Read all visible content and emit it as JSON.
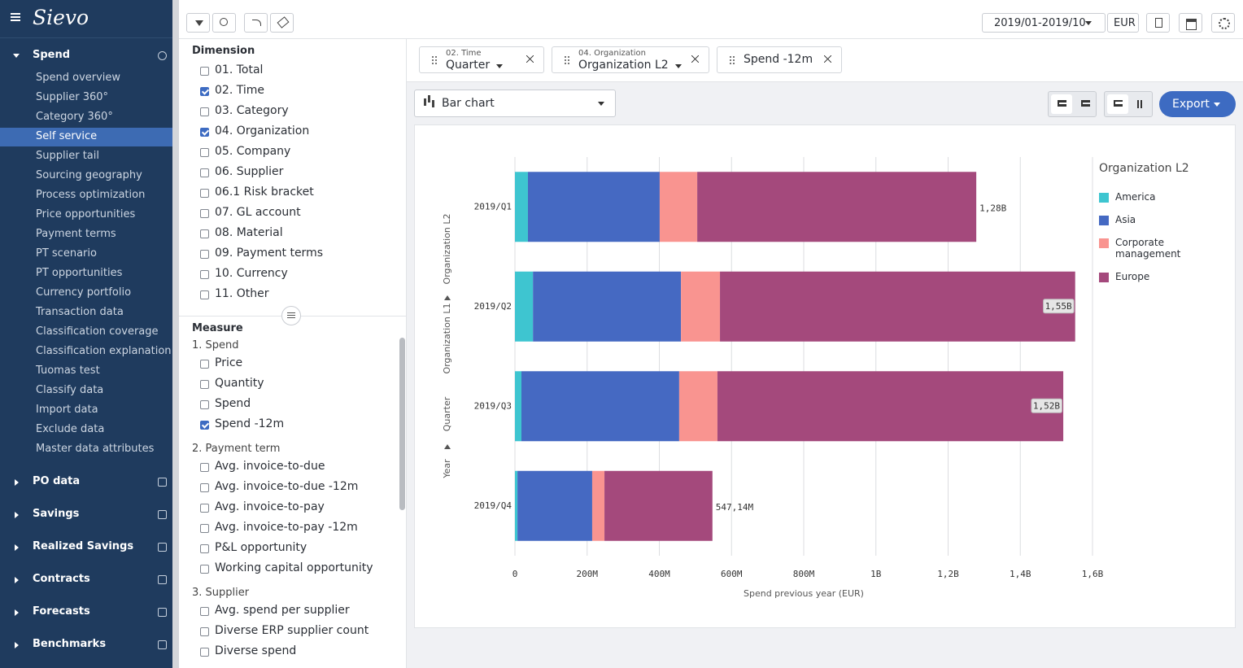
{
  "sidebar": {
    "logo": "Sievo",
    "sections": [
      {
        "title": "Spend",
        "open": true,
        "selected": 3,
        "items": [
          "Spend overview",
          "Supplier 360°",
          "Category 360°",
          "Self service",
          "Supplier tail",
          "Sourcing geography",
          "Process optimization",
          "Price opportunities",
          "Payment terms",
          "PT scenario",
          "PT opportunities",
          "Currency portfolio",
          "Transaction data",
          "Classification coverage",
          "Classification explanation",
          "Tuomas test",
          "Classify data",
          "Import data",
          "Exclude data",
          "Master data attributes"
        ]
      },
      {
        "title": "PO data"
      },
      {
        "title": "Savings"
      },
      {
        "title": "Realized Savings"
      },
      {
        "title": "Contracts"
      },
      {
        "title": "Forecasts"
      },
      {
        "title": "Benchmarks"
      }
    ]
  },
  "toolbar": {
    "period": "2019/01-2019/10",
    "currency": "EUR"
  },
  "dimension": {
    "title": "Dimension",
    "items": [
      {
        "label": "01. Total",
        "checked": false
      },
      {
        "label": "02. Time",
        "checked": true
      },
      {
        "label": "03. Category",
        "checked": false
      },
      {
        "label": "04. Organization",
        "checked": true
      },
      {
        "label": "05. Company",
        "checked": false
      },
      {
        "label": "06. Supplier",
        "checked": false
      },
      {
        "label": "06.1 Risk bracket",
        "checked": false
      },
      {
        "label": "07. GL account",
        "checked": false
      },
      {
        "label": "08. Material",
        "checked": false
      },
      {
        "label": "09. Payment terms",
        "checked": false
      },
      {
        "label": "10. Currency",
        "checked": false
      },
      {
        "label": "11. Other",
        "checked": false
      }
    ]
  },
  "measure": {
    "title": "Measure",
    "groups": [
      {
        "title": "1. Spend",
        "items": [
          {
            "label": "Price",
            "checked": false
          },
          {
            "label": "Quantity",
            "checked": false
          },
          {
            "label": "Spend",
            "checked": false
          },
          {
            "label": "Spend -12m",
            "checked": true
          }
        ]
      },
      {
        "title": "2. Payment term",
        "items": [
          {
            "label": "Avg. invoice-to-due",
            "checked": false
          },
          {
            "label": "Avg. invoice-to-due -12m",
            "checked": false
          },
          {
            "label": "Avg. invoice-to-pay",
            "checked": false
          },
          {
            "label": "Avg. invoice-to-pay -12m",
            "checked": false
          },
          {
            "label": "P&L opportunity",
            "checked": false
          },
          {
            "label": "Working capital opportunity",
            "checked": false
          }
        ]
      },
      {
        "title": "3. Supplier",
        "items": [
          {
            "label": "Avg. spend per supplier",
            "checked": false
          },
          {
            "label": "Diverse ERP supplier count",
            "checked": false
          },
          {
            "label": "Diverse spend",
            "checked": false
          }
        ]
      }
    ]
  },
  "chips": [
    {
      "caption": "02. Time",
      "value": "Quarter"
    },
    {
      "caption": "04. Organization",
      "value": "Organization L2"
    },
    {
      "value": "Spend -12m"
    }
  ],
  "chart_type_select": "Bar chart",
  "export_button": "Export",
  "chart_data": {
    "type": "stacked-barh",
    "categories": [
      "2019/Q1",
      "2019/Q2",
      "2019/Q3",
      "2019/Q4"
    ],
    "series": [
      {
        "name": "America",
        "color": "#3ec5d0",
        "values": [
          36000000,
          50000000,
          18000000,
          7000000
        ]
      },
      {
        "name": "Asia",
        "color": "#4569c2",
        "values": [
          365000000,
          410000000,
          437000000,
          207000000
        ]
      },
      {
        "name": "Corporate management",
        "color": "#f99490",
        "values": [
          104000000,
          108000000,
          106000000,
          34000000
        ]
      },
      {
        "name": "Europe",
        "color": "#a4497c",
        "values": [
          773000000,
          984000000,
          958000000,
          299140000
        ]
      }
    ],
    "totals": [
      1278000000,
      1552000000,
      1519000000,
      547140000
    ],
    "total_labels": [
      "1,28B",
      "1,55B",
      "1,52B",
      "547,14M"
    ],
    "xlim": [
      0,
      1600000000
    ],
    "xticks": [
      0,
      {
        "value": 200000000,
        "label": "200M"
      },
      {
        "value": 400000000,
        "label": "400M"
      },
      {
        "value": 600000000,
        "label": "600M"
      },
      {
        "value": 800000000,
        "label": "800M"
      },
      {
        "value": 1000000000,
        "label": "1B"
      },
      {
        "value": 1200000000,
        "label": "1,2B"
      },
      {
        "value": 1400000000,
        "label": "1,4B"
      },
      {
        "value": 1600000000,
        "label": "1,6B"
      }
    ],
    "grid": true,
    "x_label": "Spend previous year (EUR)",
    "y_labels": [
      "Year",
      "Quarter",
      "Organization L1",
      "Organization L2"
    ],
    "legend_title": "Organization L2",
    "legend": "right"
  }
}
